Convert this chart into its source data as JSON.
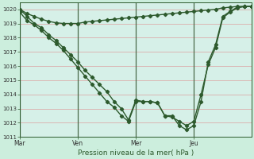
{
  "xlabel": "Pression niveau de la mer( hPa )",
  "bg_color": "#cceedd",
  "plot_bg": "#d6f0e8",
  "grid_color": "#dda0a0",
  "line_color": "#2d5a2d",
  "vline_color": "#4a6a4a",
  "ylim": [
    1011,
    1020.5
  ],
  "yticks": [
    1011,
    1012,
    1013,
    1014,
    1015,
    1016,
    1017,
    1018,
    1019,
    1020
  ],
  "xtick_labels": [
    "Mar",
    "Ven",
    "Mer",
    "Jeu"
  ],
  "xtick_positions": [
    0,
    8,
    16,
    24
  ],
  "xlim": [
    0,
    32
  ],
  "num_points": 33,
  "line1_x": [
    0,
    1,
    2,
    3,
    4,
    5,
    6,
    7,
    8,
    9,
    10,
    11,
    12,
    13,
    14,
    15,
    16,
    17,
    18,
    19,
    20,
    21,
    22,
    23,
    24,
    25,
    26,
    27,
    28,
    29,
    30,
    31,
    32
  ],
  "line1_y": [
    1020.0,
    1019.7,
    1019.5,
    1019.3,
    1019.15,
    1019.05,
    1019.0,
    1019.0,
    1019.0,
    1019.1,
    1019.15,
    1019.2,
    1019.25,
    1019.3,
    1019.35,
    1019.4,
    1019.45,
    1019.5,
    1019.55,
    1019.6,
    1019.65,
    1019.7,
    1019.75,
    1019.8,
    1019.85,
    1019.9,
    1019.95,
    1020.0,
    1020.1,
    1020.15,
    1020.2,
    1020.2,
    1020.2
  ],
  "line2_x": [
    0,
    1,
    2,
    3,
    4,
    5,
    6,
    7,
    8,
    9,
    10,
    11,
    12,
    13,
    14,
    15,
    16,
    17,
    18,
    19,
    20,
    21,
    22,
    23,
    24,
    25,
    26,
    27,
    28,
    29,
    30,
    31,
    32
  ],
  "line2_y": [
    1020.0,
    1019.5,
    1019.0,
    1018.7,
    1018.2,
    1017.8,
    1017.3,
    1016.8,
    1016.3,
    1015.7,
    1015.2,
    1014.7,
    1014.2,
    1013.5,
    1013.0,
    1012.2,
    1013.6,
    1013.5,
    1013.5,
    1013.4,
    1012.5,
    1012.4,
    1012.1,
    1011.8,
    1012.1,
    1014.0,
    1016.1,
    1017.3,
    1019.4,
    1019.8,
    1020.1,
    1020.2,
    1020.2
  ],
  "line3_x": [
    0,
    1,
    2,
    3,
    4,
    5,
    6,
    7,
    8,
    9,
    10,
    11,
    12,
    13,
    14,
    15,
    16,
    17,
    18,
    19,
    20,
    21,
    22,
    23,
    24,
    25,
    26,
    27,
    28,
    29,
    30,
    31,
    32
  ],
  "line3_y": [
    1019.8,
    1019.2,
    1018.9,
    1018.5,
    1018.0,
    1017.6,
    1017.1,
    1016.5,
    1015.9,
    1015.3,
    1014.7,
    1014.1,
    1013.5,
    1013.1,
    1012.5,
    1012.1,
    1013.5,
    1013.5,
    1013.5,
    1013.4,
    1012.5,
    1012.5,
    1011.8,
    1011.5,
    1011.8,
    1013.5,
    1016.3,
    1017.5,
    1019.5,
    1019.85,
    1020.15,
    1020.2,
    1020.2
  ],
  "marker": "D",
  "markersize": 2.2,
  "linewidth": 1.0
}
